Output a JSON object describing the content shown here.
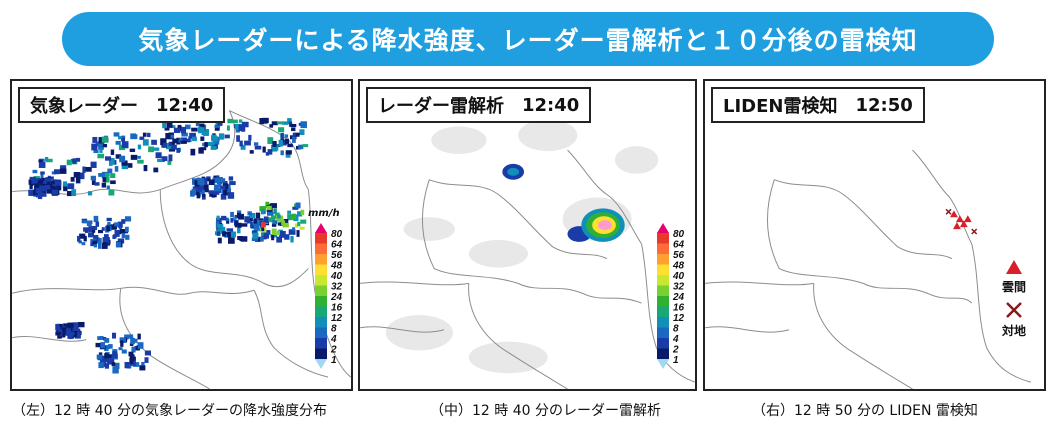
{
  "title": "気象レーダーによる降水強度、レーダー雷解析と１０分後の雷検知",
  "panels": [
    {
      "label": "気象レーダー",
      "time": "12:40",
      "caption": "（左）12 時 40 分の気象レーダーの降水強度分布"
    },
    {
      "label": "レーダー雷解析",
      "time": "12:40",
      "caption": "（中）12 時 40 分のレーダー雷解析"
    },
    {
      "label": "LIDEN雷検知",
      "time": "12:50",
      "caption": "（右）12 時 50 分の LIDEN 雷検知"
    }
  ],
  "legend": {
    "unit": "mm/h",
    "levels": [
      "80",
      "64",
      "56",
      "48",
      "40",
      "32",
      "24",
      "16",
      "12",
      "8",
      "4",
      "2",
      "1"
    ],
    "colors": [
      "#e8006e",
      "#e83a2a",
      "#ff6a3a",
      "#ffa030",
      "#ffe030",
      "#c8e830",
      "#7ad030",
      "#30b030",
      "#18a878",
      "#1090b8",
      "#1a68c0",
      "#1a3ca8",
      "#0a1a6a",
      "#a0d8f0"
    ]
  },
  "lightning_key": {
    "cloud_label": "雲間",
    "ground_label": "対地",
    "cloud_color": "#d8202a",
    "ground_color": "#8a1a1a"
  }
}
